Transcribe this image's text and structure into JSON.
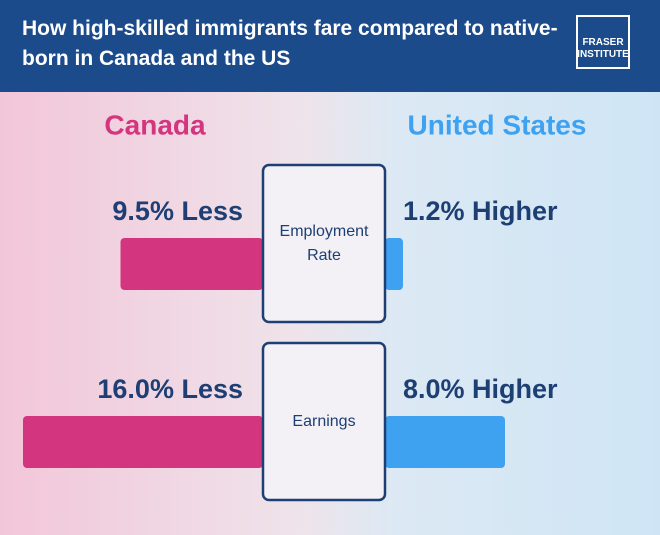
{
  "logo": {
    "line1": "FRASER",
    "line2": "INSTITUTE"
  },
  "chart_data": {
    "type": "bar",
    "title": "How high-skilled immigrants fare compared to native-born in Canada and the US",
    "categories": [
      "Employment Rate",
      "Earnings"
    ],
    "series": [
      {
        "name": "Canada",
        "color": "#d4357f",
        "values": [
          -9.5,
          -16.0
        ],
        "value_labels": [
          "9.5% Less",
          "16.0% Less"
        ]
      },
      {
        "name": "United States",
        "color": "#3ea2f0",
        "values": [
          1.2,
          8.0
        ],
        "value_labels": [
          "1.2% Higher",
          "8.0% Higher"
        ]
      }
    ]
  }
}
